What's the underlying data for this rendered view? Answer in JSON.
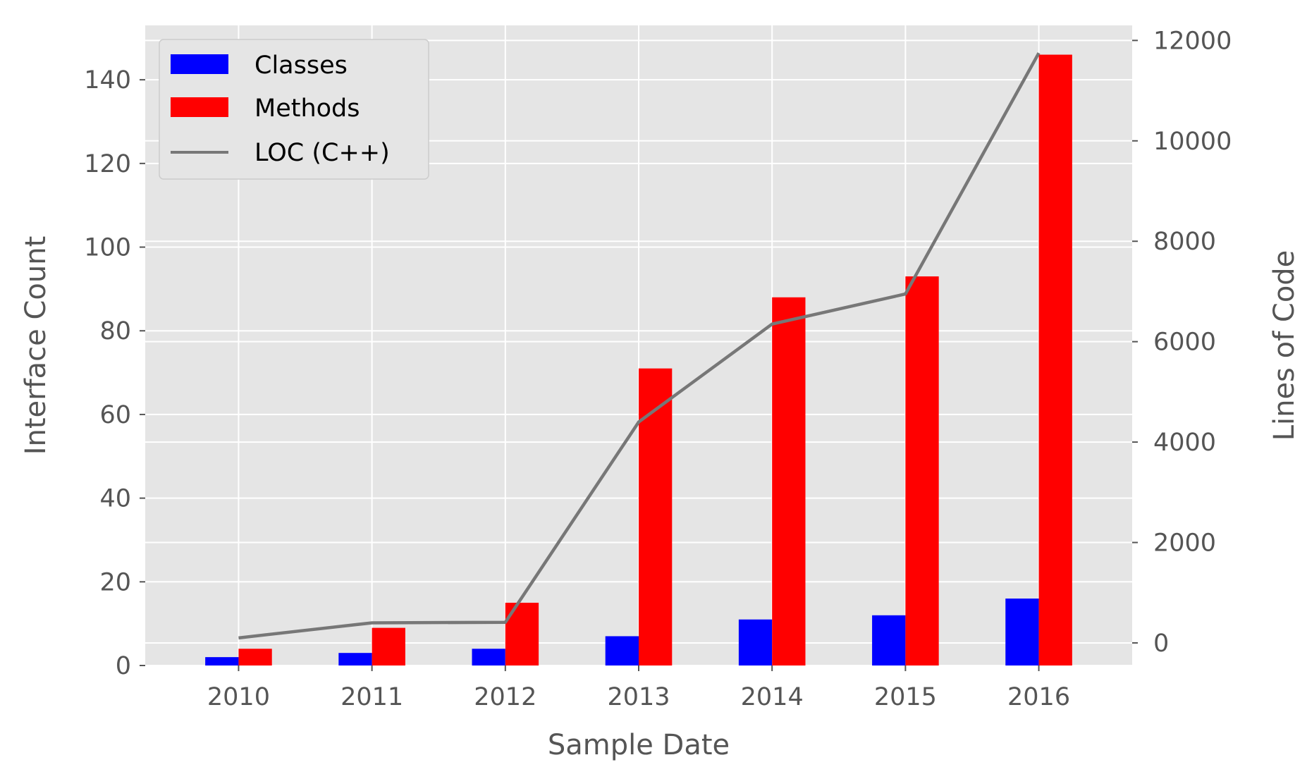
{
  "chart_data": {
    "type": "bar",
    "categories": [
      "2010",
      "2011",
      "2012",
      "2013",
      "2014",
      "2015",
      "2016"
    ],
    "series": [
      {
        "name": "Classes",
        "axis": "left",
        "type": "bar",
        "color": "#0000ff",
        "values": [
          2,
          3,
          4,
          7,
          11,
          12,
          16
        ]
      },
      {
        "name": "Methods",
        "axis": "left",
        "type": "bar",
        "color": "#ff0000",
        "values": [
          4,
          9,
          15,
          71,
          88,
          93,
          146
        ]
      },
      {
        "name": "LOC (C++)",
        "axis": "right",
        "type": "line",
        "color": "#777777",
        "values": [
          100,
          400,
          410,
          4400,
          6350,
          6950,
          11750
        ]
      }
    ],
    "xlabel": "Sample Date",
    "ylabel": "Interface Count",
    "y2label": "Lines of Code",
    "ylim": [
      0,
      153
    ],
    "y2lim": [
      -450,
      12300
    ],
    "yticks": [
      0,
      20,
      40,
      60,
      80,
      100,
      120,
      140
    ],
    "y2ticks": [
      0,
      2000,
      4000,
      6000,
      8000,
      10000,
      12000
    ],
    "grid": true,
    "legend_position": "top-left",
    "style": "ggplot"
  }
}
